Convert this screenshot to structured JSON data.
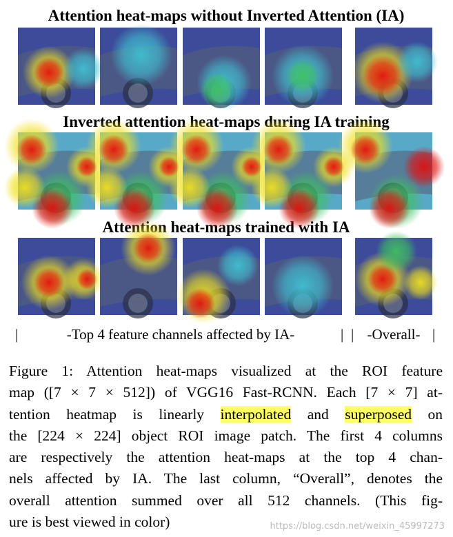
{
  "figure": {
    "row_titles": [
      "Attention heat-maps without Inverted Attention (IA)",
      "Inverted attention heat-maps during IA training",
      "Attention heat-maps trained with IA"
    ],
    "column_labels": {
      "separator": "|",
      "left": "-Top 4 feature channels affected by IA-",
      "right": "-Overall-"
    }
  },
  "caption": {
    "lines": [
      "Figure 1: Attention heat-maps visualized at the ROI feature",
      "map ([7 × 7 × 512]) of VGG16 Fast-RCNN. Each [7 × 7] at-",
      [
        "tention heatmap is linearly ",
        "interpolated",
        " and ",
        "superposed",
        " on"
      ],
      "the [224 × 224] object ROI image patch. The first 4 columns",
      "are respectively the attention heat-maps at the top 4 chan-",
      "nels affected by IA. The last column, “Overall”, denotes the",
      "overall attention summed over all 512 channels. (This fig-",
      "ure is best viewed in color)"
    ]
  },
  "watermark": "https://blog.csdn.net/weixin_45997273"
}
